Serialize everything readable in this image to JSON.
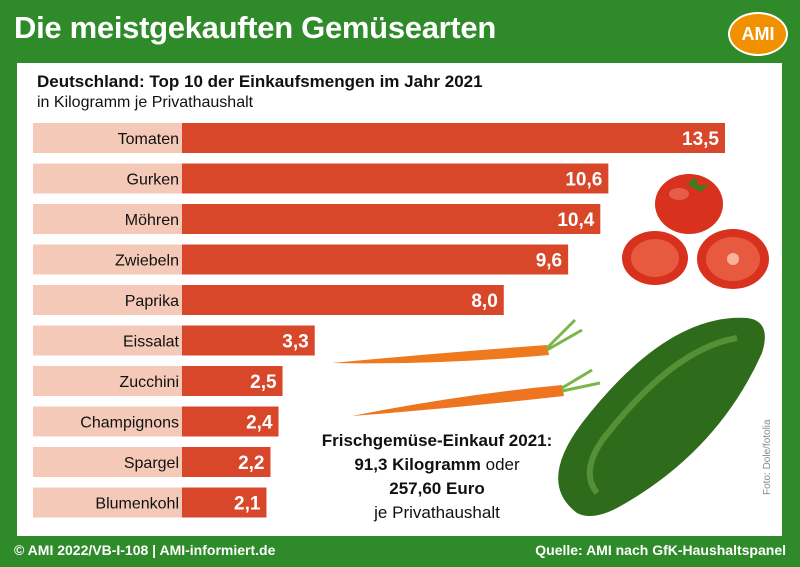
{
  "header": {
    "title": "Die meistgekauften Gemüsearten",
    "logo_text": "AMI"
  },
  "chart_data": {
    "type": "bar",
    "orientation": "horizontal",
    "title": "Deutschland: Top 10 der Einkaufsmengen im Jahr 2021",
    "subtitle": "in Kilogramm je Privathaushalt",
    "categories": [
      "Tomaten",
      "Gurken",
      "Möhren",
      "Zwiebeln",
      "Paprika",
      "Eissalat",
      "Zucchini",
      "Champignons",
      "Spargel",
      "Blumenkohl"
    ],
    "values": [
      13.5,
      10.6,
      10.4,
      9.6,
      8.0,
      3.3,
      2.5,
      2.4,
      2.2,
      2.1
    ],
    "value_labels": [
      "13,5",
      "10,6",
      "10,4",
      "9,6",
      "8,0",
      "3,3",
      "2,5",
      "2,4",
      "2,2",
      "2,1"
    ],
    "bar_color": "#d9472b",
    "label_bg_color": "#f5c9b8",
    "xlim": [
      0,
      13.5
    ],
    "grid": false,
    "legend": "none"
  },
  "summary": {
    "line1": "Frischgemüse-Einkauf 2021:",
    "line2_bold": "91,3 Kilogramm",
    "line2_rest": " oder",
    "line3": "257,60 Euro",
    "line4": "je Privathaushalt"
  },
  "photo_credit": "Foto: Dole/fotolia",
  "footer": {
    "left": "© AMI 2022/VB-I-108 | AMI-informiert.de",
    "right": "Quelle: AMI nach GfK-Haushaltspanel"
  },
  "colors": {
    "frame": "#2f8a2a",
    "accent": "#f29100"
  }
}
